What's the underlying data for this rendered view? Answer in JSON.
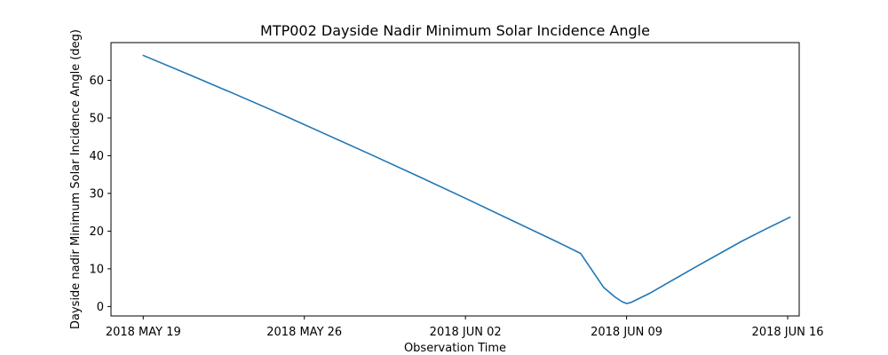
{
  "chart_data": {
    "type": "line",
    "title": "MTP002 Dayside Nadir Minimum Solar Incidence Angle",
    "xlabel": "Observation Time",
    "ylabel": "Dayside nadir Minimum Solar Incidence Angle (deg)",
    "x_unit": "days since 2018 MAY 19",
    "xlim": [
      -1.4,
      28.5
    ],
    "ylim": [
      -2.5,
      70
    ],
    "x_ticks": [
      {
        "value": 0,
        "label": "2018 MAY 19"
      },
      {
        "value": 7,
        "label": "2018 MAY 26"
      },
      {
        "value": 14,
        "label": "2018 JUN 02"
      },
      {
        "value": 21,
        "label": "2018 JUN 09"
      },
      {
        "value": 28,
        "label": "2018 JUN 16"
      }
    ],
    "y_ticks": [
      0,
      10,
      20,
      30,
      40,
      50,
      60
    ],
    "grid": false,
    "series": [
      {
        "name": "Minimum Solar Incidence Angle",
        "color": "#1f77b4",
        "x": [
          0,
          2,
          4,
          6,
          8,
          10,
          12,
          14,
          16,
          18,
          19,
          20,
          20.5,
          20.8,
          21.0,
          21.2,
          21.5,
          22,
          24,
          26,
          27,
          28.1
        ],
        "y": [
          66.6,
          61.5,
          56.3,
          51.0,
          45.5,
          40.0,
          34.4,
          28.7,
          22.9,
          17.1,
          14.1,
          5.1,
          2.5,
          1.3,
          0.8,
          1.1,
          2.0,
          3.5,
          10.5,
          17.3,
          20.4,
          23.7
        ]
      }
    ]
  }
}
